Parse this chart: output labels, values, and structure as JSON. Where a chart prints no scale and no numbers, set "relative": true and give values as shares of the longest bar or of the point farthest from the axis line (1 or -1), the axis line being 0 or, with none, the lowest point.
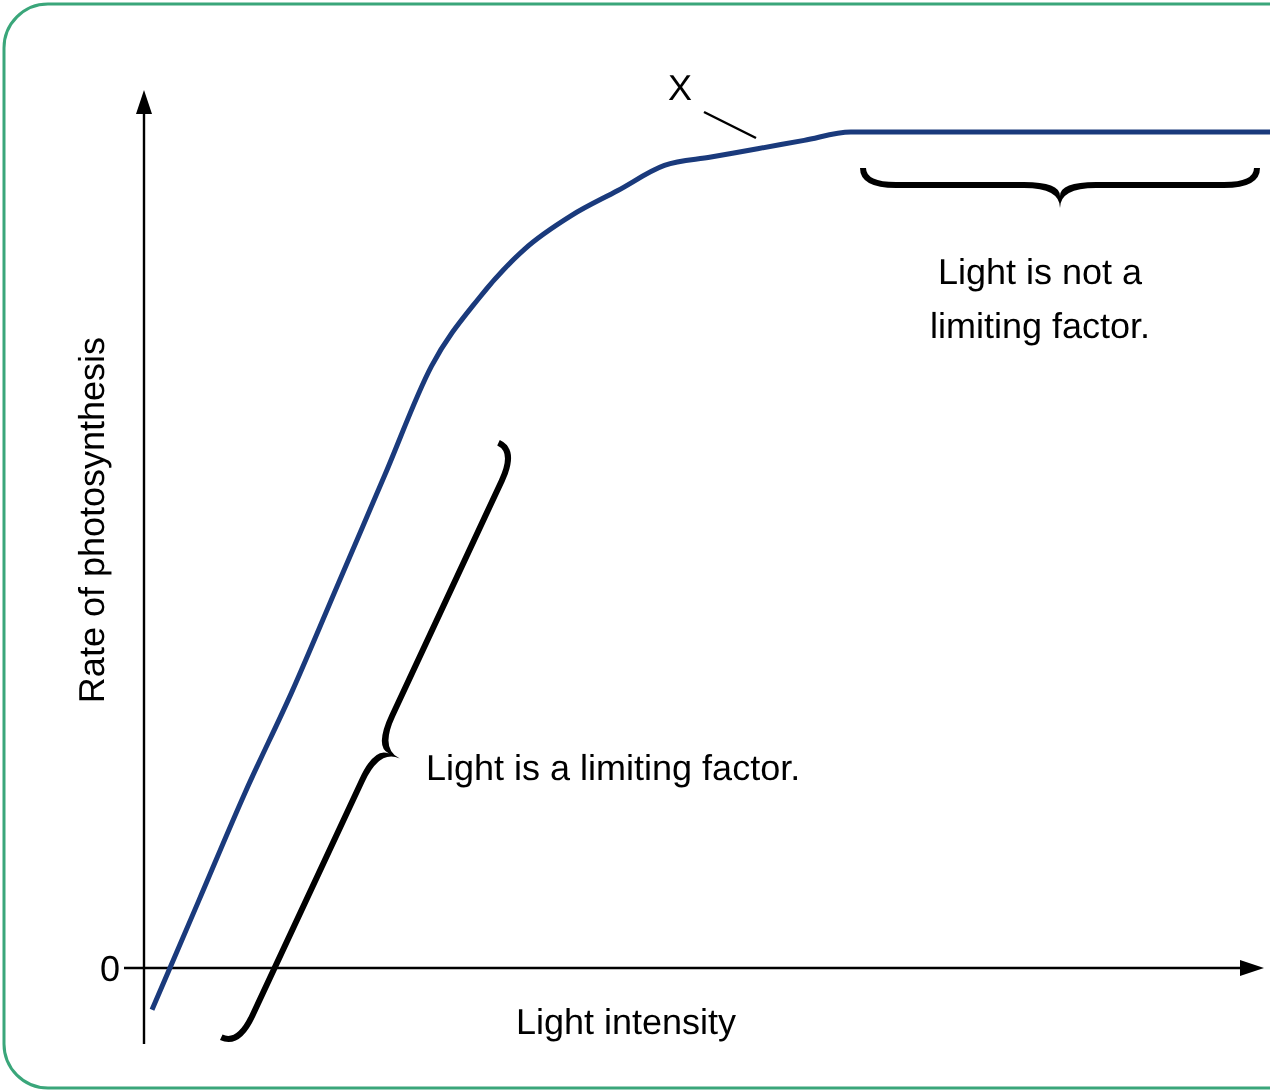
{
  "chart_data": {
    "type": "line",
    "relative": true,
    "xlabel": "Light intensity",
    "ylabel": "Rate of photosynthesis",
    "categories": [
      null,
      null,
      null,
      null,
      null,
      null,
      null,
      null,
      null,
      null,
      null,
      null,
      null,
      null,
      null,
      null,
      null,
      null,
      null,
      null,
      null,
      null,
      null,
      null,
      null
    ],
    "series": [
      {
        "color": "#1a3a7c",
        "values": [
          -0.05,
          0.08,
          0.21,
          0.33,
          0.46,
          0.59,
          0.72,
          0.8,
          0.86,
          0.9,
          0.93,
          0.96,
          0.97,
          0.98,
          0.99,
          1,
          1,
          1,
          1,
          1,
          1,
          1,
          1,
          1,
          1
        ]
      }
    ],
    "annotations": [
      "X",
      "Light is a limiting factor.",
      "Light is not a limiting factor.",
      "0"
    ],
    "marker": "none",
    "line_style": "solid"
  }
}
